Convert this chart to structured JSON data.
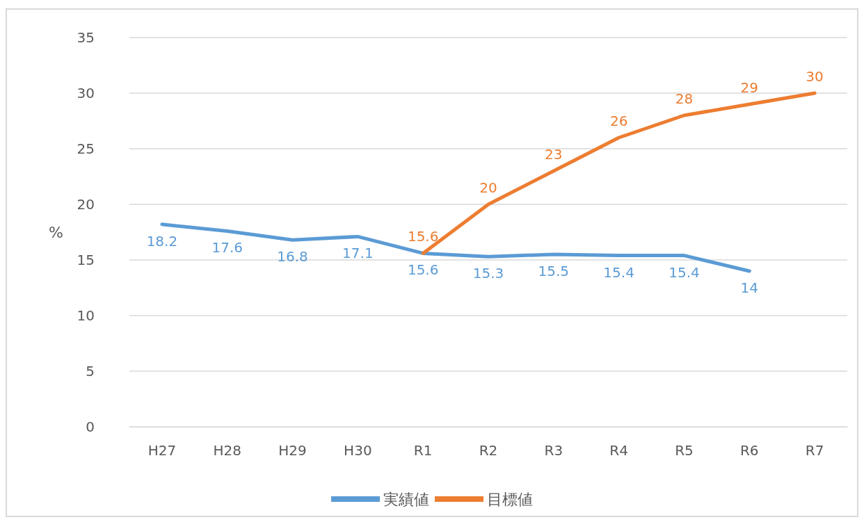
{
  "chart_data": {
    "type": "line",
    "ylabel": "%",
    "categories": [
      "H27",
      "H28",
      "H29",
      "H30",
      "R1",
      "R2",
      "R3",
      "R4",
      "R5",
      "R6",
      "R7"
    ],
    "series": [
      {
        "name": "実績値",
        "color": "#5b9bd5",
        "values": [
          18.2,
          17.6,
          16.8,
          17.1,
          15.6,
          15.3,
          15.5,
          15.4,
          15.4,
          14,
          null
        ]
      },
      {
        "name": "目標値",
        "color": "#ed7d31",
        "values": [
          null,
          null,
          null,
          null,
          15.6,
          20,
          23,
          26,
          28,
          29,
          30
        ]
      }
    ],
    "ylim": [
      0,
      35
    ],
    "yticks": [
      0,
      5,
      10,
      15,
      20,
      25,
      30,
      35
    ],
    "grid": "y",
    "legend": "bottom",
    "data_labels": true,
    "marker": "none",
    "line_style": "solid"
  }
}
